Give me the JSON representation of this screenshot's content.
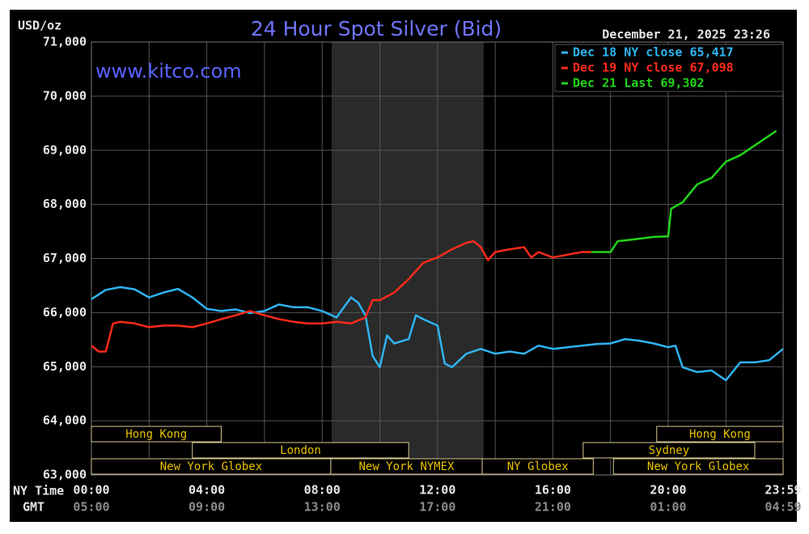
{
  "chart_data": {
    "type": "line",
    "title": "24 Hour Spot Silver (Bid)",
    "y_label": "USD/oz",
    "timestamp": "December 21, 2025 23:26",
    "watermark": "www.kitco.com",
    "x_label": "NY Time",
    "x2_label": "GMT",
    "xlim": [
      0,
      23.983
    ],
    "xticks": [
      {
        "value": 0,
        "label": "00:00"
      },
      {
        "value": 4,
        "label": "04:00"
      },
      {
        "value": 8,
        "label": "08:00"
      },
      {
        "value": 12,
        "label": "12:00"
      },
      {
        "value": 16,
        "label": "16:00"
      },
      {
        "value": 20,
        "label": "20:00"
      },
      {
        "value": 23.983,
        "label": "23:59"
      }
    ],
    "x2ticks": [
      {
        "value": 0,
        "label": "05:00"
      },
      {
        "value": 4,
        "label": "09:00"
      },
      {
        "value": 8,
        "label": "13:00"
      },
      {
        "value": 12,
        "label": "17:00"
      },
      {
        "value": 16,
        "label": "21:00"
      },
      {
        "value": 20,
        "label": "01:00"
      },
      {
        "value": 23.983,
        "label": "04:59"
      }
    ],
    "xminor": [
      2,
      6,
      10,
      14,
      18,
      22
    ],
    "ylim": [
      63000,
      71000
    ],
    "yticks": [
      {
        "value": 63000,
        "label": "63,000"
      },
      {
        "value": 64000,
        "label": "64,000"
      },
      {
        "value": 65000,
        "label": "65,000"
      },
      {
        "value": 66000,
        "label": "66,000"
      },
      {
        "value": 67000,
        "label": "67,000"
      },
      {
        "value": 68000,
        "label": "68,000"
      },
      {
        "value": 69000,
        "label": "69,000"
      },
      {
        "value": 70000,
        "label": "70,000"
      },
      {
        "value": 71000,
        "label": "71,000"
      }
    ],
    "grid": true,
    "legend": "top-right",
    "highlight": [
      8.33,
      13.6
    ],
    "sessions": [
      {
        "label": "Hong Kong",
        "start": 0,
        "end": 4.5,
        "row": 0
      },
      {
        "label": "Hong Kong",
        "start": 19.6,
        "end": 23.983,
        "row": 0
      },
      {
        "label": "London",
        "start": 3.5,
        "end": 11.0,
        "row": 1
      },
      {
        "label": "Sydney",
        "start": 17.05,
        "end": 23.0,
        "row": 1
      },
      {
        "label": "New York Globex",
        "start": 0,
        "end": 8.3,
        "row": 2
      },
      {
        "label": "New York NYMEX",
        "start": 8.3,
        "end": 13.55,
        "row": 2
      },
      {
        "label": "NY Globex",
        "start": 13.55,
        "end": 17.4,
        "row": 2
      },
      {
        "label": "New York Globex",
        "start": 18.1,
        "end": 23.983,
        "row": 2
      }
    ],
    "series": [
      {
        "name": "Dec 18 NY close 65,417",
        "color": "#2fb4f2",
        "x": [
          0,
          0.5,
          1,
          1.5,
          2,
          2.5,
          3,
          3.5,
          4,
          4.5,
          5,
          5.5,
          6,
          6.5,
          7,
          7.5,
          8,
          8.5,
          9,
          9.25,
          9.5,
          9.75,
          10,
          10.25,
          10.5,
          11,
          11.25,
          11.5,
          12,
          12.25,
          12.5,
          13,
          13.5,
          14,
          14.5,
          15,
          15.5,
          16,
          16.5,
          17,
          17.5,
          18,
          18.5,
          19,
          19.5,
          20,
          20.25,
          20.5,
          21,
          21.5,
          22,
          22.5,
          23,
          23.5,
          23.983
        ],
        "values": [
          66250,
          66420,
          66470,
          66430,
          66280,
          66370,
          66440,
          66280,
          66070,
          66030,
          66060,
          65990,
          66030,
          66150,
          66100,
          66100,
          66030,
          65910,
          66280,
          66180,
          65950,
          65200,
          64990,
          65580,
          65430,
          65510,
          65950,
          65880,
          65760,
          65060,
          64990,
          65240,
          65330,
          65240,
          65280,
          65240,
          65390,
          65330,
          65360,
          65390,
          65420,
          65430,
          65510,
          65480,
          65430,
          65360,
          65390,
          64990,
          64900,
          64930,
          64750,
          65080,
          65080,
          65120,
          65330
        ]
      },
      {
        "name": "Dec 19 NY close 67,098",
        "color": "#ff2a1a",
        "x": [
          0,
          0.25,
          0.5,
          0.75,
          1,
          1.5,
          2,
          2.5,
          3,
          3.5,
          4,
          4.5,
          5,
          5.5,
          6,
          6.5,
          7,
          7.5,
          8,
          8.5,
          9,
          9.5,
          9.75,
          10,
          10.5,
          11,
          11.5,
          12,
          12.5,
          13,
          13.25,
          13.5,
          13.75,
          14,
          14.5,
          15,
          15.25,
          15.5,
          16,
          16.5,
          17,
          17.33
        ],
        "values": [
          65390,
          65280,
          65280,
          65800,
          65830,
          65800,
          65730,
          65760,
          65760,
          65730,
          65800,
          65880,
          65950,
          66030,
          65950,
          65880,
          65830,
          65800,
          65800,
          65830,
          65800,
          65910,
          66230,
          66230,
          66370,
          66620,
          66920,
          67020,
          67170,
          67290,
          67320,
          67210,
          66970,
          67120,
          67170,
          67210,
          67020,
          67120,
          67020,
          67070,
          67120,
          67120
        ]
      },
      {
        "name": "Dec 21 Last 69,302",
        "color": "#22d41a",
        "x": [
          17.33,
          18,
          18.25,
          18.75,
          19.5,
          20,
          20.1,
          20.5,
          21,
          21.5,
          22,
          22.5,
          23,
          23.5,
          23.75
        ],
        "values": [
          67120,
          67120,
          67320,
          67350,
          67400,
          67410,
          67920,
          68040,
          68370,
          68490,
          68790,
          68910,
          69090,
          69270,
          69360
        ]
      }
    ]
  }
}
